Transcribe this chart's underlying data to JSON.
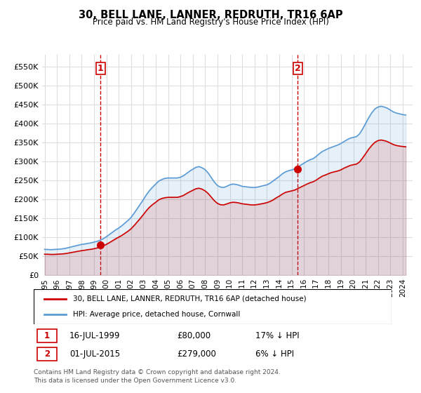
{
  "title": "30, BELL LANE, LANNER, REDRUTH, TR16 6AP",
  "subtitle": "Price paid vs. HM Land Registry's House Price Index (HPI)",
  "legend_line1": "30, BELL LANE, LANNER, REDRUTH, TR16 6AP (detached house)",
  "legend_line2": "HPI: Average price, detached house, Cornwall",
  "footer1": "Contains HM Land Registry data © Crown copyright and database right 2024.",
  "footer2": "This data is licensed under the Open Government Licence v3.0.",
  "annotation1_label": "1",
  "annotation1_date": "16-JUL-1999",
  "annotation1_price": "£80,000",
  "annotation1_hpi": "17% ↓ HPI",
  "annotation2_label": "2",
  "annotation2_date": "01-JUL-2015",
  "annotation2_price": "£279,000",
  "annotation2_hpi": "6% ↓ HPI",
  "red_color": "#cc0000",
  "blue_color": "#5b9bd5",
  "vline_color": "#cc0000",
  "grid_color": "#dddddd",
  "bg_color": "#ffffff",
  "ylim": [
    0,
    580000
  ],
  "yticks": [
    0,
    50000,
    100000,
    150000,
    200000,
    250000,
    300000,
    350000,
    400000,
    450000,
    500000,
    550000
  ],
  "ytick_labels": [
    "£0",
    "£50K",
    "£100K",
    "£150K",
    "£200K",
    "£250K",
    "£300K",
    "£350K",
    "£400K",
    "£450K",
    "£500K",
    "£550K"
  ],
  "hpi_years": [
    1995.0,
    1995.25,
    1995.5,
    1995.75,
    1996.0,
    1996.25,
    1996.5,
    1996.75,
    1997.0,
    1997.25,
    1997.5,
    1997.75,
    1998.0,
    1998.25,
    1998.5,
    1998.75,
    1999.0,
    1999.25,
    1999.5,
    1999.75,
    2000.0,
    2000.25,
    2000.5,
    2000.75,
    2001.0,
    2001.25,
    2001.5,
    2001.75,
    2002.0,
    2002.25,
    2002.5,
    2002.75,
    2003.0,
    2003.25,
    2003.5,
    2003.75,
    2004.0,
    2004.25,
    2004.5,
    2004.75,
    2005.0,
    2005.25,
    2005.5,
    2005.75,
    2006.0,
    2006.25,
    2006.5,
    2006.75,
    2007.0,
    2007.25,
    2007.5,
    2007.75,
    2008.0,
    2008.25,
    2008.5,
    2008.75,
    2009.0,
    2009.25,
    2009.5,
    2009.75,
    2010.0,
    2010.25,
    2010.5,
    2010.75,
    2011.0,
    2011.25,
    2011.5,
    2011.75,
    2012.0,
    2012.25,
    2012.5,
    2012.75,
    2013.0,
    2013.25,
    2013.5,
    2013.75,
    2014.0,
    2014.25,
    2014.5,
    2014.75,
    2015.0,
    2015.25,
    2015.5,
    2015.75,
    2016.0,
    2016.25,
    2016.5,
    2016.75,
    2017.0,
    2017.25,
    2017.5,
    2017.75,
    2018.0,
    2018.25,
    2018.5,
    2018.75,
    2019.0,
    2019.25,
    2019.5,
    2019.75,
    2020.0,
    2020.25,
    2020.5,
    2020.75,
    2021.0,
    2021.25,
    2021.5,
    2021.75,
    2022.0,
    2022.25,
    2022.5,
    2022.75,
    2023.0,
    2023.25,
    2023.5,
    2023.75,
    2024.0,
    2024.25
  ],
  "hpi_values": [
    68000,
    67500,
    67000,
    67500,
    68000,
    68500,
    69500,
    71000,
    73000,
    75000,
    77000,
    79000,
    81000,
    82000,
    83500,
    85000,
    87000,
    89000,
    92000,
    96000,
    101000,
    107000,
    113000,
    119000,
    124000,
    130000,
    137000,
    144000,
    152000,
    163000,
    175000,
    187000,
    199000,
    212000,
    223000,
    232000,
    240000,
    248000,
    252000,
    255000,
    256000,
    256000,
    256000,
    256000,
    258000,
    262000,
    268000,
    274000,
    279000,
    284000,
    286000,
    283000,
    278000,
    269000,
    257000,
    245000,
    236000,
    232000,
    231000,
    234000,
    238000,
    240000,
    239000,
    237000,
    234000,
    233000,
    232000,
    231000,
    231000,
    232000,
    234000,
    236000,
    238000,
    242000,
    248000,
    254000,
    260000,
    267000,
    272000,
    275000,
    277000,
    280000,
    285000,
    290000,
    295000,
    300000,
    304000,
    307000,
    313000,
    320000,
    326000,
    330000,
    334000,
    337000,
    340000,
    343000,
    347000,
    352000,
    357000,
    361000,
    363000,
    365000,
    372000,
    385000,
    400000,
    415000,
    428000,
    438000,
    443000,
    445000,
    443000,
    440000,
    435000,
    430000,
    427000,
    425000,
    423000,
    422000
  ],
  "red_years": [
    1995.0,
    1995.25,
    1995.5,
    1995.75,
    1996.0,
    1996.25,
    1996.5,
    1996.75,
    1997.0,
    1997.25,
    1997.5,
    1997.75,
    1998.0,
    1998.25,
    1998.5,
    1998.75,
    1999.0,
    1999.25,
    1999.5,
    1999.75,
    2000.0,
    2000.25,
    2000.5,
    2000.75,
    2001.0,
    2001.25,
    2001.5,
    2001.75,
    2002.0,
    2002.25,
    2002.5,
    2002.75,
    2003.0,
    2003.25,
    2003.5,
    2003.75,
    2004.0,
    2004.25,
    2004.5,
    2004.75,
    2005.0,
    2005.25,
    2005.5,
    2005.75,
    2006.0,
    2006.25,
    2006.5,
    2006.75,
    2007.0,
    2007.25,
    2007.5,
    2007.75,
    2008.0,
    2008.25,
    2008.5,
    2008.75,
    2009.0,
    2009.25,
    2009.5,
    2009.75,
    2010.0,
    2010.25,
    2010.5,
    2010.75,
    2011.0,
    2011.25,
    2011.5,
    2011.75,
    2012.0,
    2012.25,
    2012.5,
    2012.75,
    2013.0,
    2013.25,
    2013.5,
    2013.75,
    2014.0,
    2014.25,
    2014.5,
    2014.75,
    2015.0,
    2015.25,
    2015.5,
    2015.75,
    2016.0,
    2016.25,
    2016.5,
    2016.75,
    2017.0,
    2017.25,
    2017.5,
    2017.75,
    2018.0,
    2018.25,
    2018.5,
    2018.75,
    2019.0,
    2019.25,
    2019.5,
    2019.75,
    2020.0,
    2020.25,
    2020.5,
    2020.75,
    2021.0,
    2021.25,
    2021.5,
    2021.75,
    2022.0,
    2022.25,
    2022.5,
    2022.75,
    2023.0,
    2023.25,
    2023.5,
    2023.75,
    2024.0,
    2024.25
  ],
  "red_values": [
    55000,
    55000,
    54500,
    54500,
    55000,
    55500,
    56000,
    57000,
    58500,
    60000,
    61500,
    63000,
    64500,
    65500,
    67000,
    68000,
    69500,
    71500,
    73500,
    77000,
    81000,
    85500,
    90500,
    95500,
    100000,
    104500,
    110000,
    115500,
    122000,
    130500,
    140000,
    149500,
    159500,
    170000,
    179000,
    186000,
    192000,
    198500,
    202000,
    204000,
    205000,
    205000,
    205000,
    205000,
    207000,
    210000,
    215000,
    219500,
    223500,
    227500,
    229000,
    226500,
    222000,
    215000,
    205500,
    196000,
    189000,
    185500,
    185000,
    187500,
    190500,
    192000,
    191500,
    190000,
    188000,
    187000,
    186000,
    185000,
    185000,
    186000,
    187500,
    189000,
    191000,
    194000,
    198000,
    203500,
    208000,
    213500,
    218000,
    220000,
    222000,
    224000,
    228000,
    232000,
    236000,
    240000,
    243500,
    246000,
    250500,
    256000,
    261000,
    264000,
    267500,
    270500,
    272500,
    274500,
    277500,
    282000,
    285500,
    289000,
    291000,
    292500,
    298000,
    308500,
    320000,
    332000,
    342000,
    350000,
    354500,
    356000,
    354500,
    352000,
    348000,
    344000,
    341500,
    340000,
    339000,
    338000
  ],
  "sale1_year": 1999.54,
  "sale1_value": 80000,
  "sale2_year": 2015.5,
  "sale2_value": 279000,
  "vline1_year": 1999.54,
  "vline2_year": 2015.5
}
